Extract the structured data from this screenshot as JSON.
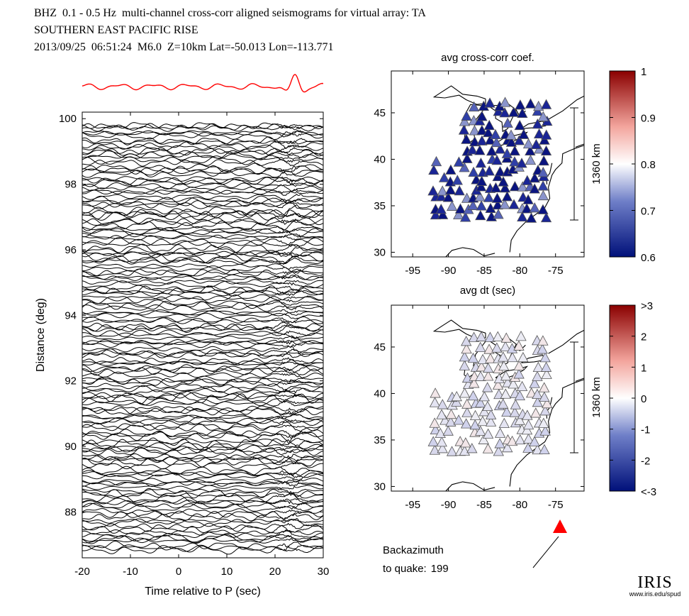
{
  "header": {
    "line1": "BHZ  0.1 - 0.5 Hz  multi-channel cross-corr aligned seismograms for virtual array: TA",
    "line2": "SOUTHERN EAST PACIFIC RISE",
    "line3": "2013/09/25  06:51:24  M6.0  Z=10km Lat=-50.013 Lon=-113.771"
  },
  "logo": {
    "text": "IRIS",
    "url": "www.iris.edu/spud"
  },
  "chart_data": [
    {
      "type": "line",
      "name": "seismogram-record-section",
      "xlabel": "Time relative to P (sec)",
      "ylabel": "Distance (deg)",
      "xlim": [
        -20,
        30
      ],
      "ylim": [
        86.6,
        100.2
      ],
      "xticks": [
        -20,
        -10,
        0,
        10,
        20,
        30
      ],
      "yticks": [
        88,
        90,
        92,
        94,
        96,
        98,
        100
      ],
      "trace_count": 160,
      "stack_trace_color": "#ff0000",
      "trace_color": "#000000"
    },
    {
      "type": "scatter",
      "name": "avg-cross-corr-map",
      "title": "avg cross-corr coef.",
      "xlim": [
        -98,
        -71
      ],
      "ylim": [
        29.5,
        49.5
      ],
      "xticks": [
        -95,
        -90,
        -85,
        -80,
        -75
      ],
      "yticks": [
        30,
        35,
        40,
        45
      ],
      "scalebar_label": "1360 km",
      "colorbar": {
        "min": 0.6,
        "max": 1,
        "ticks": [
          "1",
          "0.9",
          "0.8",
          "0.7",
          "0.6"
        ]
      },
      "typical_value": 0.62
    },
    {
      "type": "scatter",
      "name": "avg-dt-map",
      "title": "avg dt (sec)",
      "xlim": [
        -98,
        -71
      ],
      "ylim": [
        29.5,
        49.5
      ],
      "xticks": [
        -95,
        -90,
        -85,
        -80,
        -75
      ],
      "yticks": [
        30,
        35,
        40,
        45
      ],
      "scalebar_label": "1360 km",
      "colorbar": {
        "min": -3,
        "max": 3,
        "ticks": [
          ">3",
          "2",
          "1",
          "0",
          "-1",
          "-2",
          "<-3"
        ]
      },
      "typical_value": -0.1
    }
  ],
  "backazimuth": {
    "label_line1": "Backazimuth",
    "label_line2": "to quake:",
    "value": "199"
  },
  "colors": {
    "stack": "#ff0000",
    "station_dark": "#1a1f8f",
    "station_light": "#dcdcec"
  }
}
